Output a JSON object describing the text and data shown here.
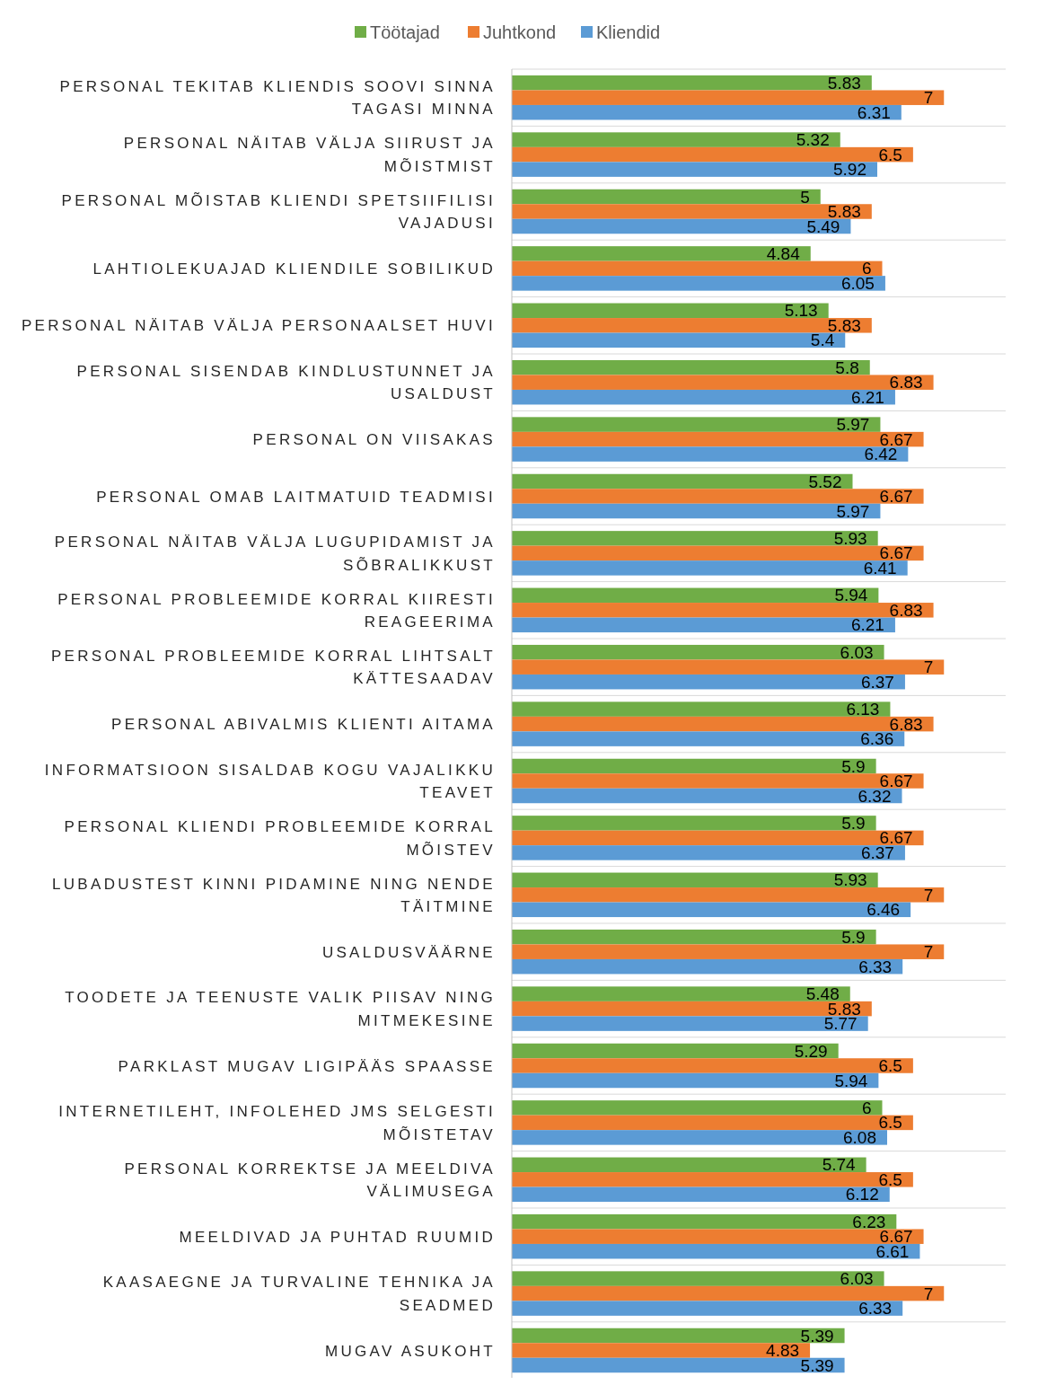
{
  "chart_data": {
    "type": "bar",
    "orientation": "horizontal",
    "data_labels": true,
    "grid": "y",
    "legend": "top",
    "xlim": [
      0,
      8
    ],
    "categories": [
      "PERSONAL TEKITAB KLIENDIS SOOVI SINNA TAGASI MINNA",
      "PERSONAL NÄITAB VÄLJA SIIRUST JA MÕISTMIST",
      "PERSONAL MÕISTAB KLIENDI SPETSIIFILISI VAJADUSI",
      "LAHTIOLEKUAJAD KLIENDILE SOBILIKUD",
      "PERSONAL NÄITAB VÄLJA PERSONAALSET HUVI",
      "PERSONAL SISENDAB KINDLUSTUNNET JA USALDUST",
      "PERSONAL ON VIISAKAS",
      "PERSONAL OMAB LAITMATUID TEADMISI",
      "PERSONAL NÄITAB VÄLJA LUGUPIDAMIST JA SÕBRALIKKUST",
      "PERSONAL PROBLEEMIDE KORRAL KIIRESTI REAGEERIMA",
      "PERSONAL PROBLEEMIDE KORRAL LIHTSALT KÄTTESAADAV",
      "PERSONAL ABIVALMIS KLIENTI AITAMA",
      "INFORMATSIOON SISALDAB KOGU VAJALIKKU TEAVET",
      "PERSONAL KLIENDI PROBLEEMIDE KORRAL MÕISTEV",
      "LUBADUSTEST KINNI PIDAMINE NING NENDE TÄITMINE",
      "USALDUSVÄÄRNE",
      "TOODETE JA TEENUSTE VALIK PIISAV NING MITMEKESINE",
      "PARKLAST MUGAV LIGIPÄÄS SPAASSE",
      "INTERNETILEHT, INFOLEHED JMS SELGESTI MÕISTETAV",
      "PERSONAL KORREKTSE JA MEELDIVA VÄLIMUSEGA",
      "MEELDIVAD JA PUHTAD RUUMID",
      "KAASAEGNE JA TURVALINE TEHNIKA JA SEADMED",
      "MUGAV ASUKOHT"
    ],
    "series": [
      {
        "name": "Töötajad",
        "color": "#70ad47",
        "values": [
          5.83,
          5.32,
          5,
          4.84,
          5.13,
          5.8,
          5.97,
          5.52,
          5.93,
          5.94,
          6.03,
          6.13,
          5.9,
          5.9,
          5.93,
          5.9,
          5.48,
          5.29,
          6,
          5.74,
          6.23,
          6.03,
          5.39
        ]
      },
      {
        "name": "Juhtkond",
        "color": "#ed7d31",
        "values": [
          7,
          6.5,
          5.83,
          6,
          5.83,
          6.83,
          6.67,
          6.67,
          6.67,
          6.83,
          7,
          6.83,
          6.67,
          6.67,
          7,
          7,
          5.83,
          6.5,
          6.5,
          6.5,
          6.67,
          7,
          4.83
        ]
      },
      {
        "name": "Kliendid",
        "color": "#5b9bd5",
        "values": [
          6.31,
          5.92,
          5.49,
          6.05,
          5.4,
          6.21,
          6.42,
          5.97,
          6.41,
          6.21,
          6.37,
          6.36,
          6.32,
          6.37,
          6.46,
          6.33,
          5.77,
          5.94,
          6.08,
          6.12,
          6.61,
          6.33,
          5.39
        ]
      }
    ]
  }
}
